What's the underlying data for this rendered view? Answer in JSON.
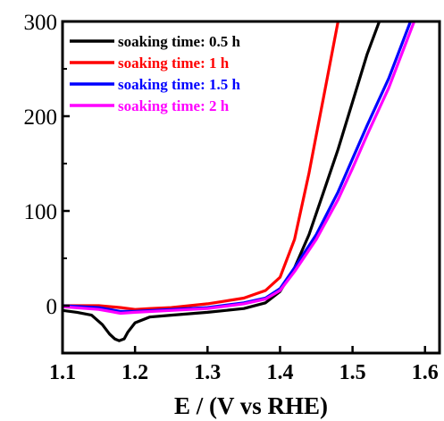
{
  "chart_data": {
    "type": "line",
    "xlabel": "E / (V vs RHE)",
    "ylabel": "",
    "xlim": [
      1.1,
      1.62
    ],
    "ylim": [
      -50,
      300
    ],
    "xticks": [
      "1.1",
      "1.2",
      "1.3",
      "1.4",
      "1.5",
      "1.6"
    ],
    "yticks": [
      "0",
      "100",
      "200",
      "300"
    ],
    "legend_position": "top-left",
    "grid": false,
    "series": [
      {
        "name": "soaking time: 0.5 h",
        "color": "#000000",
        "x": [
          1.1,
          1.12,
          1.14,
          1.155,
          1.165,
          1.172,
          1.178,
          1.185,
          1.19,
          1.2,
          1.22,
          1.25,
          1.3,
          1.35,
          1.38,
          1.4,
          1.42,
          1.44,
          1.46,
          1.48,
          1.5,
          1.52,
          1.537
        ],
        "y": [
          -5,
          -7,
          -10,
          -20,
          -30,
          -35,
          -37,
          -35,
          -28,
          -18,
          -12,
          -10,
          -7,
          -3,
          3,
          15,
          40,
          75,
          120,
          165,
          215,
          265,
          300
        ]
      },
      {
        "name": "soaking time: 1 h",
        "color": "#ff0000",
        "x": [
          1.1,
          1.15,
          1.18,
          1.2,
          1.22,
          1.25,
          1.3,
          1.35,
          1.38,
          1.4,
          1.42,
          1.44,
          1.45,
          1.46,
          1.47,
          1.48
        ],
        "y": [
          0,
          0,
          -2,
          -4,
          -3,
          -2,
          2,
          8,
          16,
          30,
          70,
          140,
          180,
          220,
          260,
          300
        ]
      },
      {
        "name": "soaking time: 1.5 h",
        "color": "#0000ff",
        "x": [
          1.1,
          1.15,
          1.18,
          1.2,
          1.25,
          1.3,
          1.35,
          1.38,
          1.4,
          1.42,
          1.45,
          1.48,
          1.5,
          1.52,
          1.55,
          1.58
        ],
        "y": [
          0,
          -2,
          -6,
          -6,
          -4,
          -2,
          3,
          8,
          18,
          40,
          75,
          120,
          155,
          190,
          240,
          300
        ]
      },
      {
        "name": "soaking time: 2 h",
        "color": "#ff00ff",
        "x": [
          1.1,
          1.15,
          1.18,
          1.2,
          1.25,
          1.3,
          1.35,
          1.38,
          1.4,
          1.42,
          1.45,
          1.48,
          1.5,
          1.52,
          1.55,
          1.585
        ],
        "y": [
          -1,
          -4,
          -8,
          -7,
          -5,
          -3,
          2,
          7,
          16,
          36,
          70,
          112,
          145,
          180,
          230,
          300
        ]
      }
    ]
  }
}
